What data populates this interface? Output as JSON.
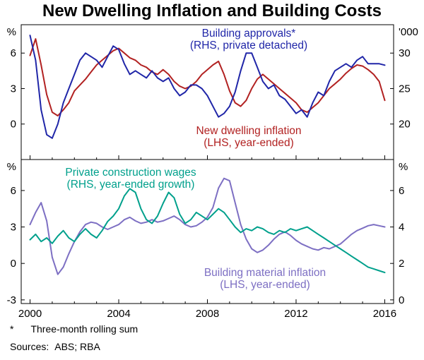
{
  "title": "New Dwelling Inflation and Building Costs",
  "footnote": {
    "marker": "*",
    "text": "Three-month rolling sum"
  },
  "sources": {
    "label": "Sources:",
    "value": "ABS; RBA"
  },
  "chart_data": {
    "type": "line",
    "title": "New Dwelling Inflation and Building Costs",
    "x_start": 2000.0,
    "x_step": 0.25,
    "x_ticks": [
      2000,
      2004,
      2008,
      2012,
      2016
    ],
    "x_minor_ticks": [
      2001,
      2002,
      2003,
      2005,
      2006,
      2007,
      2009,
      2010,
      2011,
      2013,
      2014,
      2015
    ],
    "layout": {
      "left": 30,
      "right": 557,
      "xlim": [
        1999.6,
        2016.4
      ]
    },
    "panels": [
      {
        "y_top": 35,
        "y_bottom": 226,
        "left_axis": {
          "unit": "%",
          "ticks": [
            0,
            3,
            6
          ],
          "range": [
            -3,
            8.4
          ]
        },
        "right_axis": {
          "unit": "'000",
          "ticks": [
            20,
            25,
            30
          ],
          "range": [
            15,
            34
          ]
        },
        "annotations": [
          {
            "id": "building-approvals-label",
            "lines": [
              "Building approvals*",
              "(RHS, private detached)"
            ],
            "x": 352,
            "y": 52,
            "color": "#2026a8"
          },
          {
            "id": "new-dwelling-inflation-label",
            "lines": [
              "New dwelling inflation",
              "(LHS, year-ended)"
            ],
            "x": 352,
            "y": 190,
            "color": "#b22222"
          }
        ],
        "series": [
          {
            "id": "new-dwelling-inflation",
            "name": "New dwelling inflation (LHS, year-ended, %)",
            "axis": "left",
            "color": "#b22222",
            "values": [
              5.8,
              7.2,
              5,
              2.5,
              1,
              0.7,
              1.2,
              1.8,
              2.8,
              3.3,
              3.8,
              4.4,
              5,
              5.4,
              5.8,
              6.2,
              6.4,
              6,
              5.6,
              5.4,
              5,
              4.8,
              4.4,
              4.2,
              4.6,
              4.2,
              3.6,
              3.2,
              3,
              3.2,
              3.6,
              4.2,
              4.6,
              5,
              5.3,
              4.2,
              2.8,
              1.8,
              1.5,
              2,
              3,
              3.8,
              4.2,
              3.8,
              3.4,
              3,
              2.6,
              2.2,
              1.8,
              1.2,
              1,
              1.4,
              1.8,
              2.4,
              3,
              3.4,
              3.8,
              4.3,
              4.7,
              5,
              4.9,
              4.6,
              4.2,
              3.6,
              2
            ]
          },
          {
            "id": "building-approvals",
            "name": "Building approvals (RHS, private detached, '000, three-month rolling sum)",
            "axis": "right",
            "color": "#2026a8",
            "values": [
              32.5,
              29,
              22,
              18.5,
              18,
              20,
              23,
              25,
              27,
              29,
              30,
              29.5,
              29,
              28,
              29.5,
              31,
              30.5,
              28.5,
              27,
              27.5,
              27,
              26.5,
              27.5,
              26.5,
              26,
              26.5,
              25,
              24,
              24.5,
              25.5,
              25.5,
              25,
              24,
              22.5,
              21,
              21.5,
              22.5,
              24.5,
              27.5,
              30,
              30,
              28,
              26,
              25,
              25.5,
              24,
              23.5,
              22.5,
              21.5,
              22,
              21,
              23,
              24.5,
              24,
              26,
              27.5,
              28,
              28.5,
              28,
              29,
              29.5,
              28.5,
              28.5,
              28.5,
              28.3
            ]
          }
        ]
      },
      {
        "y_top": 226,
        "y_bottom": 430,
        "left_axis": {
          "unit": "%",
          "ticks": [
            -3,
            0,
            3,
            6
          ],
          "range": [
            -3.3,
            8.55
          ]
        },
        "right_axis": {
          "unit": "%",
          "ticks": [
            0,
            2,
            4,
            6
          ],
          "range": [
            -0.2,
            7.7
          ]
        },
        "annotations": [
          {
            "id": "private-construction-wages-label",
            "lines": [
              "Private construction wages",
              "(RHS, year-ended growth)"
            ],
            "x": 185,
            "y": 249,
            "color": "#00a08c"
          },
          {
            "id": "building-material-inflation-label",
            "lines": [
              "Building material inflation",
              "(LHS, year-ended)"
            ],
            "x": 375,
            "y": 391,
            "color": "#7d6fc3"
          }
        ],
        "series": [
          {
            "id": "building-material-inflation",
            "name": "Building material inflation (LHS, year-ended, %)",
            "axis": "left",
            "color": "#7d6fc3",
            "values": [
              3.2,
              4.2,
              5,
              3.5,
              0.5,
              -0.9,
              -0.3,
              0.8,
              1.8,
              2.6,
              3.2,
              3.4,
              3.3,
              3,
              2.8,
              3,
              3.2,
              3.6,
              3.8,
              3.5,
              3.3,
              3.4,
              3.6,
              3.4,
              3.5,
              3.7,
              3.9,
              3.6,
              3.2,
              3,
              3.1,
              3.4,
              3.8,
              4.6,
              6.2,
              7,
              6.8,
              5,
              3.2,
              2,
              1.2,
              0.9,
              1.1,
              1.5,
              2,
              2.4,
              2.6,
              2.3,
              1.9,
              1.6,
              1.4,
              1.2,
              1.1,
              1.3,
              1.2,
              1.4,
              1.6,
              2,
              2.4,
              2.7,
              2.9,
              3.1,
              3.2,
              3.1,
              3
            ]
          },
          {
            "id": "private-construction-wages",
            "name": "Private construction wages (RHS, year-ended growth, %)",
            "axis": "right",
            "color": "#00a08c",
            "values": [
              3.3,
              3.6,
              3.2,
              3.4,
              3.1,
              3.5,
              3.8,
              3.4,
              3.2,
              3.6,
              3.9,
              3.6,
              3.4,
              3.8,
              4.3,
              4.6,
              5,
              5.7,
              6.1,
              5.9,
              5,
              4.4,
              4.2,
              4.6,
              5.3,
              5.9,
              5.6,
              4.7,
              4.2,
              4.4,
              4.8,
              4.6,
              4.4,
              4.7,
              5,
              4.8,
              4.4,
              4,
              3.7,
              3.9,
              3.8,
              4,
              3.9,
              3.7,
              3.6,
              3.8,
              3.7,
              3.9,
              3.8,
              3.9,
              4,
              3.8,
              3.6,
              3.4,
              3.2,
              3,
              2.8,
              2.6,
              2.4,
              2.2,
              2,
              1.8,
              1.7,
              1.6,
              1.5
            ]
          }
        ]
      }
    ]
  }
}
